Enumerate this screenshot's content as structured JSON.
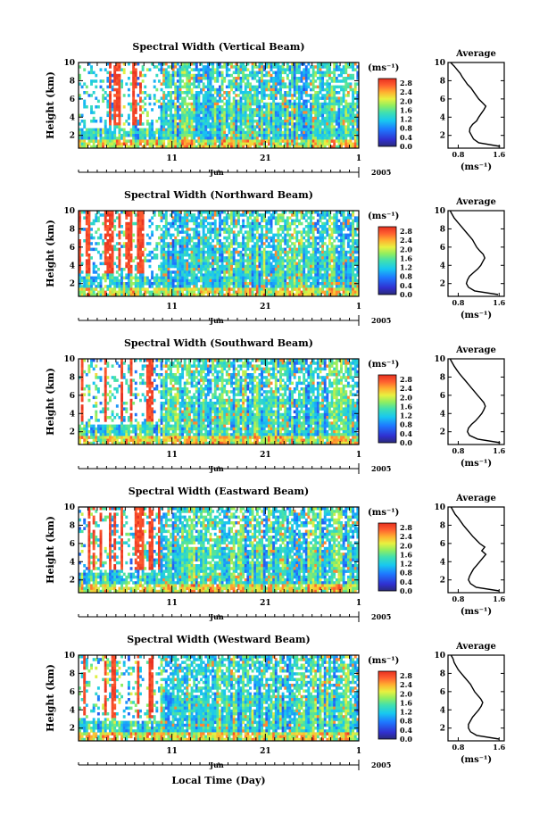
{
  "figure": {
    "xlabel": "Local Time (Day)",
    "month_label": "Jun",
    "year_label": "2005",
    "x_ticks": [
      "11",
      "21",
      "1"
    ],
    "colorbar_unit": "(ms⁻¹)",
    "avg_title": "Average",
    "avg_xlabel": "(ms⁻¹)"
  },
  "chart_data": [
    {
      "type": "heatmap",
      "title": "Spectral Width (Vertical Beam)",
      "ylabel": "Height (km)",
      "y_ticks": [
        2,
        4,
        6,
        8,
        10
      ],
      "ylim": [
        0.6,
        10
      ],
      "colorbar_ticks": [
        "0.0",
        "0.4",
        "0.8",
        "1.2",
        "1.6",
        "2.0",
        "2.4",
        "2.8"
      ],
      "colorbar_range": [
        0,
        3.0
      ],
      "profile": {
        "title": "Average",
        "x_ticks": [
          "0.8",
          "1.6"
        ],
        "xlim": [
          0.6,
          1.7
        ],
        "heights": [
          0.8,
          1.2,
          1.6,
          2.0,
          2.4,
          2.8,
          3.2,
          3.6,
          4.0,
          4.4,
          4.8,
          5.2,
          5.6,
          6.0,
          6.4,
          6.8,
          7.2,
          7.6,
          8.0,
          8.4,
          8.8,
          9.2,
          9.6,
          10.0
        ],
        "values": [
          1.62,
          1.2,
          1.1,
          1.06,
          1.02,
          1.03,
          1.08,
          1.16,
          1.2,
          1.25,
          1.3,
          1.34,
          1.27,
          1.2,
          1.15,
          1.1,
          1.05,
          0.98,
          0.93,
          0.88,
          0.84,
          0.78,
          0.72,
          0.65
        ]
      }
    },
    {
      "type": "heatmap",
      "title": "Spectral Width (Northward Beam)",
      "ylabel": "Height (km)",
      "y_ticks": [
        2,
        4,
        6,
        8,
        10
      ],
      "ylim": [
        0.6,
        10
      ],
      "colorbar_ticks": [
        "0.0",
        "0.4",
        "0.8",
        "1.2",
        "1.6",
        "2.0",
        "2.4",
        "2.8"
      ],
      "colorbar_range": [
        0,
        3.0
      ],
      "profile": {
        "title": "Average",
        "x_ticks": [
          "0.8",
          "1.6"
        ],
        "xlim": [
          0.6,
          1.7
        ],
        "heights": [
          0.8,
          1.2,
          1.6,
          2.0,
          2.4,
          2.8,
          3.2,
          3.6,
          4.0,
          4.4,
          4.8,
          5.2,
          5.6,
          6.0,
          6.4,
          6.8,
          7.2,
          7.6,
          8.0,
          8.4,
          8.8,
          9.2,
          9.6,
          10.0
        ],
        "values": [
          1.58,
          1.12,
          1.0,
          0.96,
          0.98,
          1.02,
          1.1,
          1.18,
          1.24,
          1.28,
          1.32,
          1.29,
          1.22,
          1.16,
          1.12,
          1.08,
          1.02,
          0.96,
          0.9,
          0.84,
          0.78,
          0.72,
          0.68,
          0.64
        ]
      }
    },
    {
      "type": "heatmap",
      "title": "Spectral Width (Southward Beam)",
      "ylabel": "Height (km)",
      "y_ticks": [
        2,
        4,
        6,
        8,
        10
      ],
      "ylim": [
        0.6,
        10
      ],
      "colorbar_ticks": [
        "0.0",
        "0.4",
        "0.8",
        "1.2",
        "1.6",
        "2.0",
        "2.4",
        "2.8"
      ],
      "colorbar_range": [
        0,
        3.0
      ],
      "profile": {
        "title": "Average",
        "x_ticks": [
          "0.8",
          "1.6"
        ],
        "xlim": [
          0.6,
          1.7
        ],
        "heights": [
          0.8,
          1.2,
          1.6,
          2.0,
          2.4,
          2.8,
          3.2,
          3.6,
          4.0,
          4.4,
          4.8,
          5.2,
          5.6,
          6.0,
          6.4,
          6.8,
          7.2,
          7.6,
          8.0,
          8.4,
          8.8,
          9.2,
          9.6,
          10.0
        ],
        "values": [
          1.62,
          1.18,
          1.02,
          0.98,
          1.0,
          1.06,
          1.14,
          1.2,
          1.26,
          1.3,
          1.33,
          1.3,
          1.24,
          1.18,
          1.12,
          1.06,
          1.0,
          0.94,
          0.88,
          0.82,
          0.77,
          0.72,
          0.68,
          0.64
        ]
      }
    },
    {
      "type": "heatmap",
      "title": "Spectral Width (Eastward Beam)",
      "ylabel": "Height (km)",
      "y_ticks": [
        2,
        4,
        6,
        8,
        10
      ],
      "ylim": [
        0.6,
        10
      ],
      "colorbar_ticks": [
        "0.0",
        "0.4",
        "0.8",
        "1.2",
        "1.6",
        "2.0",
        "2.4",
        "2.8"
      ],
      "colorbar_range": [
        0,
        3.0
      ],
      "profile": {
        "title": "Average",
        "x_ticks": [
          "0.8",
          "1.6"
        ],
        "xlim": [
          0.6,
          1.7
        ],
        "heights": [
          0.8,
          1.2,
          1.6,
          2.0,
          2.4,
          2.8,
          3.2,
          3.6,
          4.0,
          4.4,
          4.8,
          5.2,
          5.6,
          6.0,
          6.4,
          6.8,
          7.2,
          7.6,
          8.0,
          8.4,
          8.8,
          9.2,
          9.6,
          10.0
        ],
        "values": [
          1.6,
          1.15,
          1.04,
          1.0,
          1.02,
          1.06,
          1.1,
          1.16,
          1.22,
          1.28,
          1.34,
          1.26,
          1.32,
          1.22,
          1.15,
          1.08,
          1.02,
          0.96,
          0.9,
          0.85,
          0.8,
          0.74,
          0.7,
          0.66
        ]
      }
    },
    {
      "type": "heatmap",
      "title": "Spectral Width (Westward Beam)",
      "ylabel": "Height (km)",
      "y_ticks": [
        2,
        4,
        6,
        8,
        10
      ],
      "ylim": [
        0.6,
        10
      ],
      "colorbar_ticks": [
        "0.0",
        "0.4",
        "0.8",
        "1.2",
        "1.6",
        "2.0",
        "2.4",
        "2.8"
      ],
      "colorbar_range": [
        0,
        3.0
      ],
      "profile": {
        "title": "Average",
        "x_ticks": [
          "0.8",
          "1.6"
        ],
        "xlim": [
          0.6,
          1.7
        ],
        "heights": [
          0.8,
          1.2,
          1.6,
          2.0,
          2.4,
          2.8,
          3.2,
          3.6,
          4.0,
          4.4,
          4.8,
          5.2,
          5.6,
          6.0,
          6.4,
          6.8,
          7.2,
          7.6,
          8.0,
          8.4,
          8.8,
          9.2,
          9.6,
          10.0
        ],
        "values": [
          1.6,
          1.16,
          1.04,
          1.0,
          1.0,
          1.04,
          1.08,
          1.14,
          1.2,
          1.25,
          1.28,
          1.24,
          1.18,
          1.12,
          1.08,
          1.04,
          0.98,
          0.92,
          0.86,
          0.8,
          0.76,
          0.72,
          0.7,
          0.66
        ]
      }
    }
  ]
}
